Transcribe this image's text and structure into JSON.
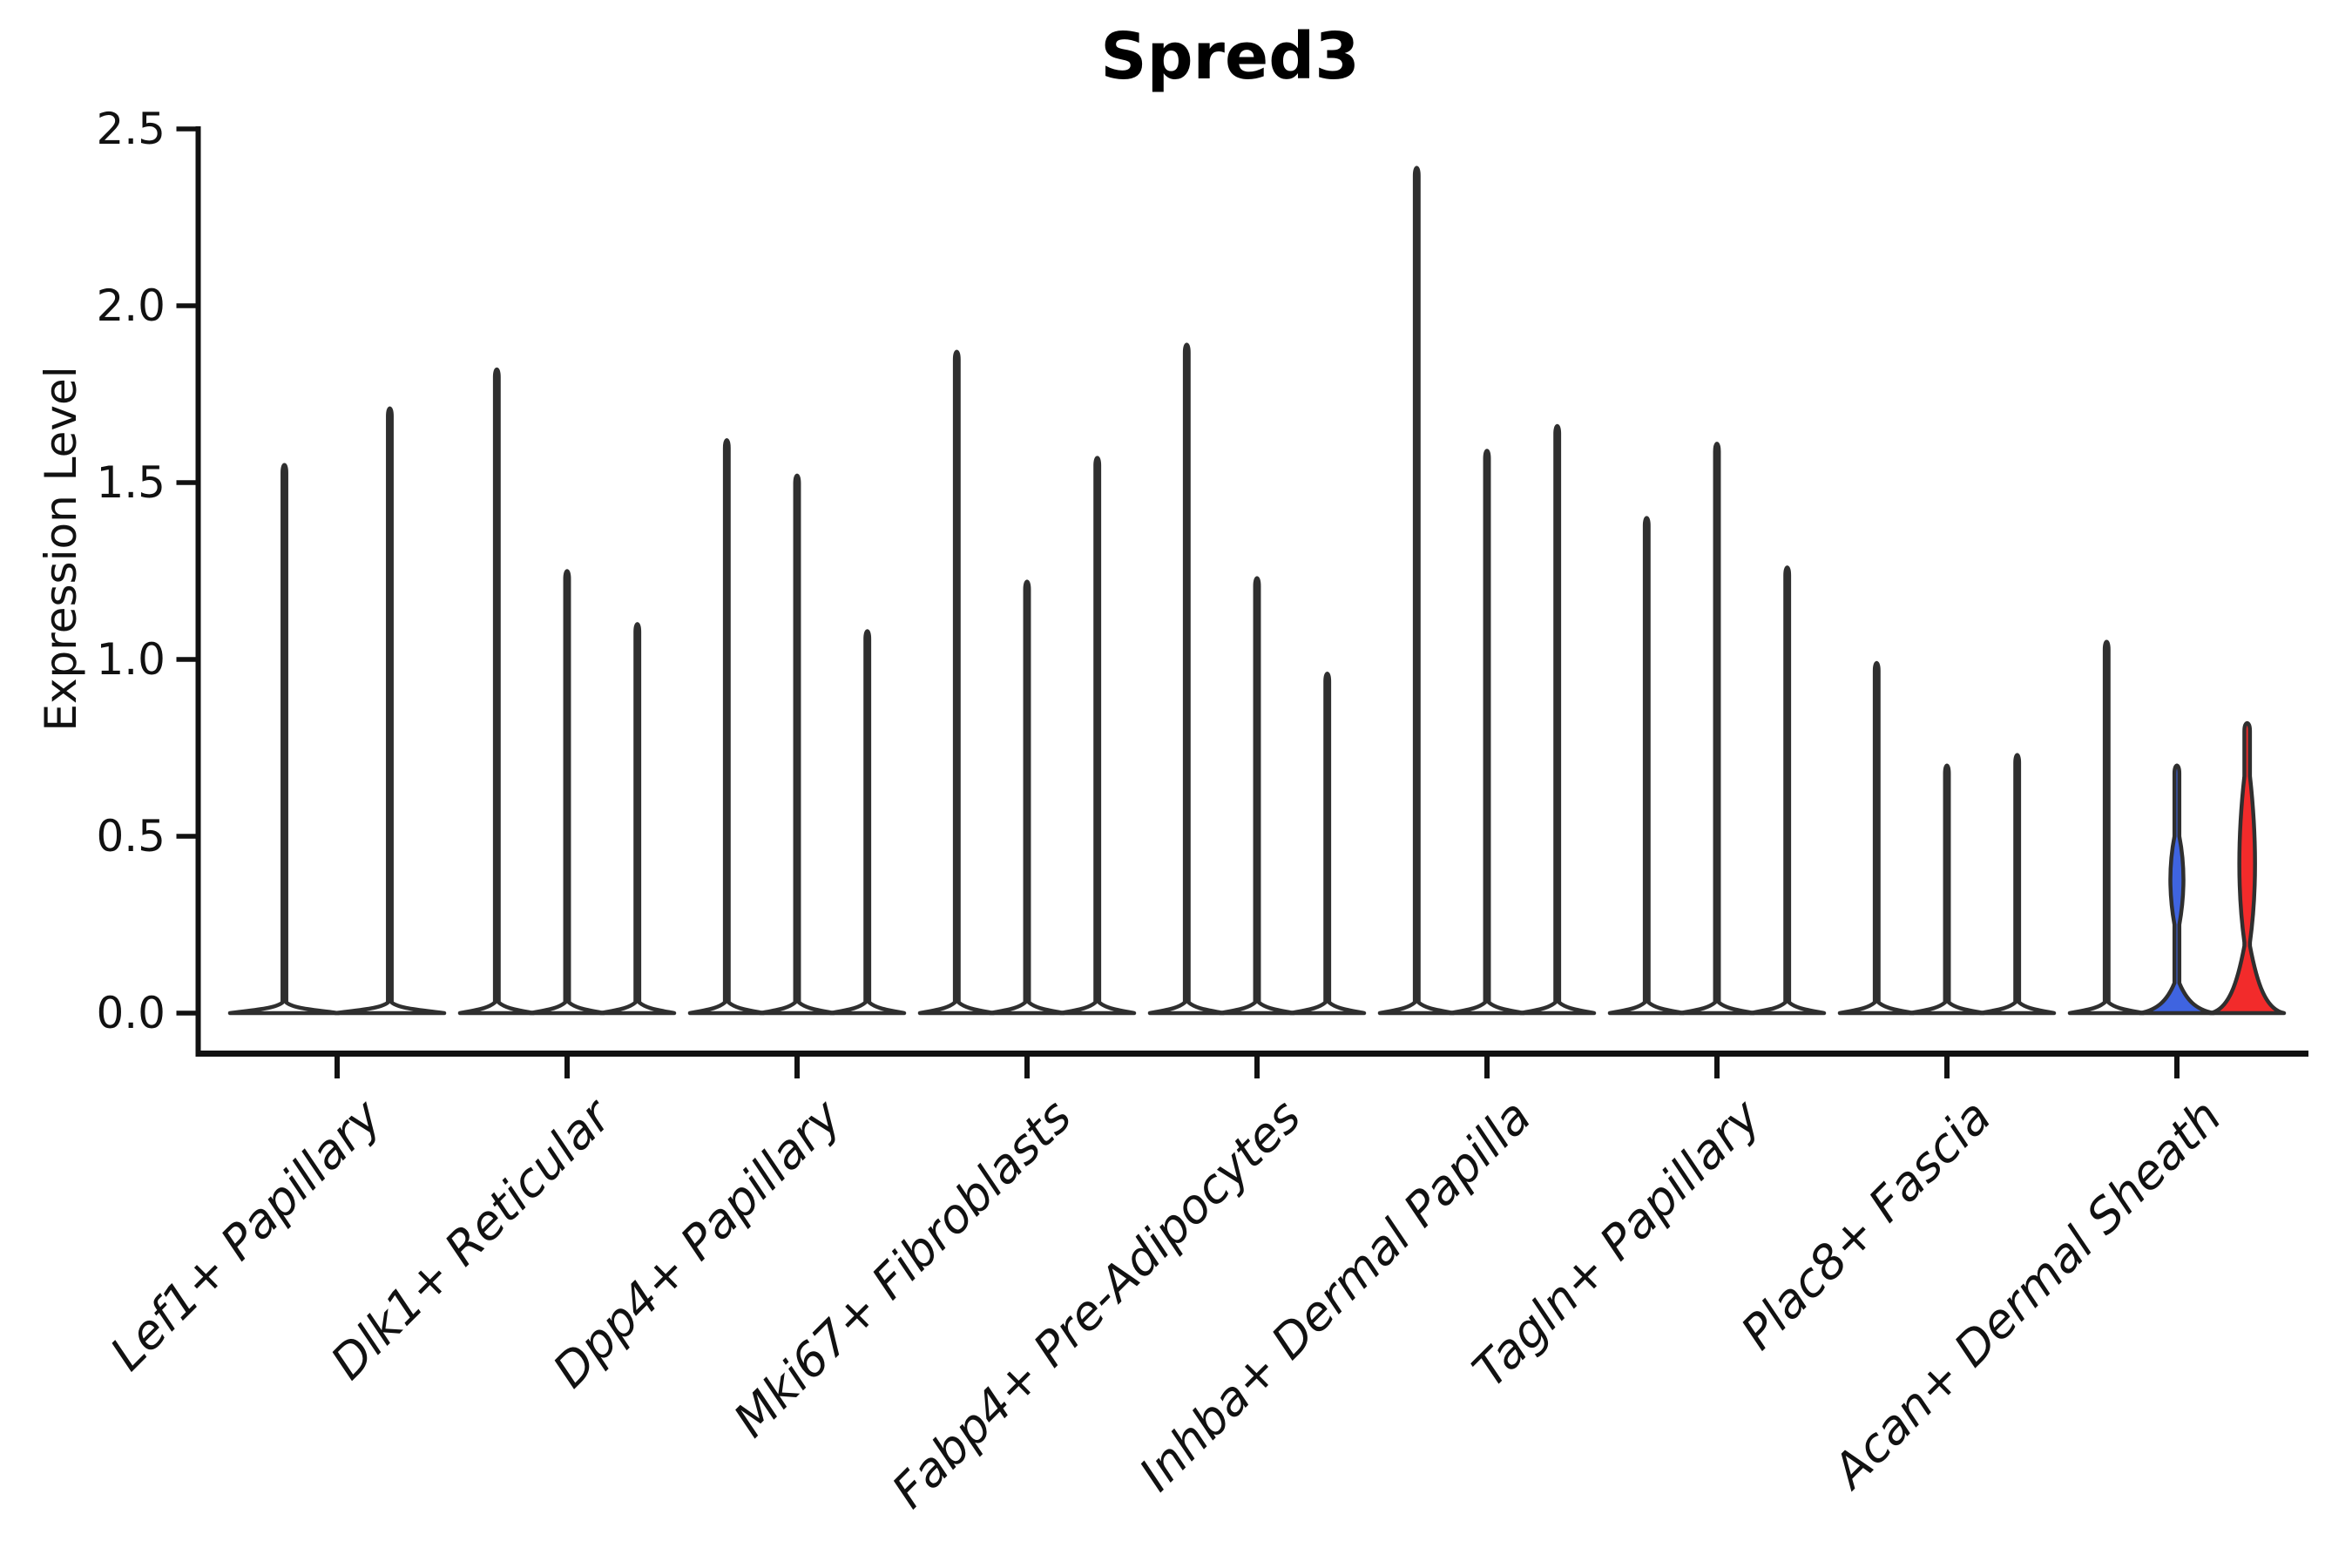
{
  "title": "Spred3",
  "y_axis": {
    "label": "Expression Level",
    "tick_labels": [
      "0.0",
      "0.5",
      "1.0",
      "1.5",
      "2.0",
      "2.5"
    ],
    "tick_values": [
      0.0,
      0.5,
      1.0,
      1.5,
      2.0,
      2.5
    ]
  },
  "colors": {
    "outline": "#2f2f2f",
    "axis": "#111111",
    "text": "#111111",
    "default_fill": "#ffffff",
    "blue": "#3F64E0",
    "red": "#F22B2B"
  },
  "chart_data": {
    "type": "violin",
    "title": "Spred3",
    "xlabel": "",
    "ylabel": "Expression Level",
    "ylim": [
      0,
      2.5
    ],
    "yticks": [
      0.0,
      0.5,
      1.0,
      1.5,
      2.0,
      2.5
    ],
    "legend": "none",
    "categories": [
      "Lef1+ Papillary",
      "Dlk1+ Reticular",
      "Dpp4+ Papillary",
      "Mki67+ Fibroblasts",
      "Fabp4+ Pre-Adipocytes",
      "Inhba+ Dermal Papilla",
      "Tagln+ Papillary",
      "Plac8+ Fascia",
      "Acan+ Dermal Sheath"
    ],
    "groups": [
      {
        "category": "Lef1+ Papillary",
        "violins": [
          {
            "max": 1.55
          },
          {
            "max": 1.71
          }
        ]
      },
      {
        "category": "Dlk1+ Reticular",
        "violins": [
          {
            "max": 1.82
          },
          {
            "max": 1.25
          },
          {
            "max": 1.1
          }
        ]
      },
      {
        "category": "Dpp4+ Papillary",
        "violins": [
          {
            "max": 1.62
          },
          {
            "max": 1.52
          },
          {
            "max": 1.08
          }
        ]
      },
      {
        "category": "Mki67+ Fibroblasts",
        "violins": [
          {
            "max": 1.87
          },
          {
            "max": 1.22
          },
          {
            "max": 1.57
          }
        ]
      },
      {
        "category": "Fabp4+ Pre-Adipocytes",
        "violins": [
          {
            "max": 1.89
          },
          {
            "max": 1.23
          },
          {
            "max": 0.96
          }
        ]
      },
      {
        "category": "Inhba+ Dermal Papilla",
        "violins": [
          {
            "max": 2.39
          },
          {
            "max": 1.59
          },
          {
            "max": 1.66
          }
        ]
      },
      {
        "category": "Tagln+ Papillary",
        "violins": [
          {
            "max": 1.4
          },
          {
            "max": 1.61
          },
          {
            "max": 1.26
          }
        ]
      },
      {
        "category": "Plac8+ Fascia",
        "violins": [
          {
            "max": 0.99
          },
          {
            "max": 0.7
          },
          {
            "max": 0.73
          }
        ]
      },
      {
        "category": "Acan+ Dermal Sheath",
        "violins": [
          {
            "max": 1.05
          },
          {
            "max": 0.7,
            "fill": "blue",
            "stem_hw": 2.8,
            "flare_start": 0.085,
            "bulge": {
              "lo": 0.25,
              "center": 0.38,
              "hi": 0.5,
              "hw": 7.5
            }
          },
          {
            "max": 0.82,
            "fill": "red",
            "stem_hw": 3.2,
            "flare_start": 0.19,
            "bulge": {
              "lo": 0.2,
              "center": 0.41,
              "hi": 0.67,
              "hw": 9
            }
          }
        ]
      }
    ]
  }
}
